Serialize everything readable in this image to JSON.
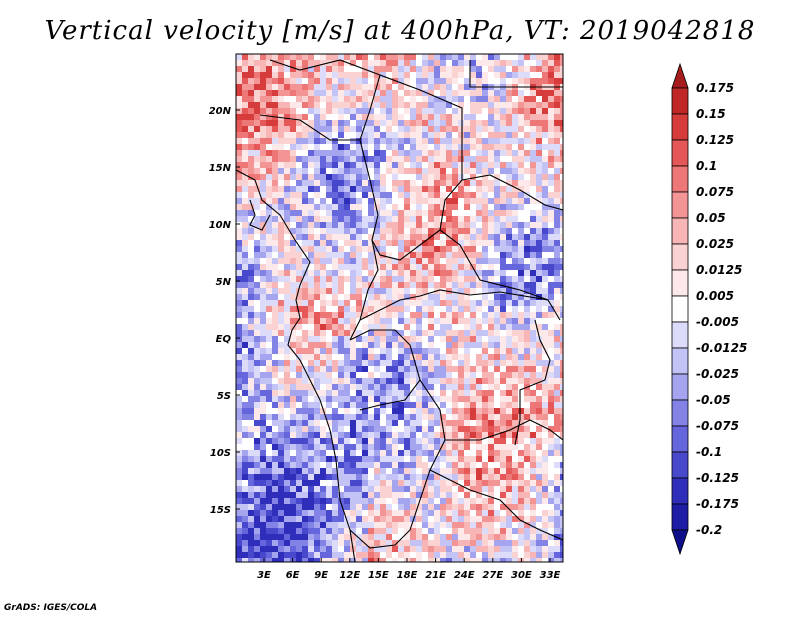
{
  "title": "Vertical velocity [m/s] at 400hPa, VT: 2019042818",
  "footer": "GrADS: IGES/COLA",
  "map": {
    "lat_labels": [
      "20N",
      "15N",
      "10N",
      "5N",
      "EQ",
      "5S",
      "10S",
      "15S"
    ],
    "lon_labels": [
      "3E",
      "6E",
      "9E",
      "12E",
      "15E",
      "18E",
      "21E",
      "24E",
      "27E",
      "30E",
      "33E"
    ]
  },
  "colorbar": {
    "labels": [
      "0.175",
      "0.15",
      "0.125",
      "0.1",
      "0.075",
      "0.05",
      "0.025",
      "0.0125",
      "0.005",
      "-0.005",
      "-0.0125",
      "-0.025",
      "-0.05",
      "-0.075",
      "-0.1",
      "-0.125",
      "-0.175",
      "-0.2"
    ],
    "colors": [
      "#a51c1c",
      "#c02828",
      "#d63c3c",
      "#e65757",
      "#ed7777",
      "#f39595",
      "#f7b5b5",
      "#fad2d2",
      "#fde9e9",
      "#ffffff",
      "#dcdcfa",
      "#c3c3f5",
      "#a4a4ef",
      "#8383e6",
      "#6565dc",
      "#4848cd",
      "#2e2eba",
      "#1d1da5",
      "#0f0f8a"
    ],
    "top_arrow_color": "#a51c1c",
    "bottom_arrow_color": "#0f0f8a"
  }
}
